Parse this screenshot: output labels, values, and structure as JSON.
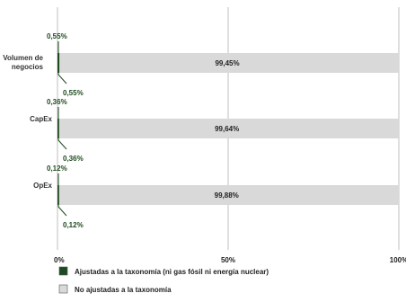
{
  "chart_data": {
    "type": "bar",
    "orientation": "horizontal",
    "stacked": true,
    "categories": [
      "Volumen de negocios",
      "CapEx",
      "OpEx"
    ],
    "series": [
      {
        "name": "Ajustadas a la taxonomía (ni gas fósil ni energía nuclear)",
        "values": [
          0.55,
          0.36,
          0.12
        ],
        "labels": [
          "0,55%",
          "0,36%",
          "0,12%"
        ],
        "color": "#1e4a1e"
      },
      {
        "name": "No ajustadas a la taxonomía",
        "values": [
          99.45,
          99.64,
          99.88
        ],
        "labels": [
          "99,45%",
          "99,64%",
          "99,88%"
        ],
        "color": "#d9d9d9"
      }
    ],
    "xlim": [
      0,
      100
    ],
    "xticks": [
      0,
      50,
      100
    ],
    "xtick_labels": [
      "0%",
      "50%",
      "100%"
    ],
    "grid": true,
    "legend_position": "bottom-left"
  }
}
